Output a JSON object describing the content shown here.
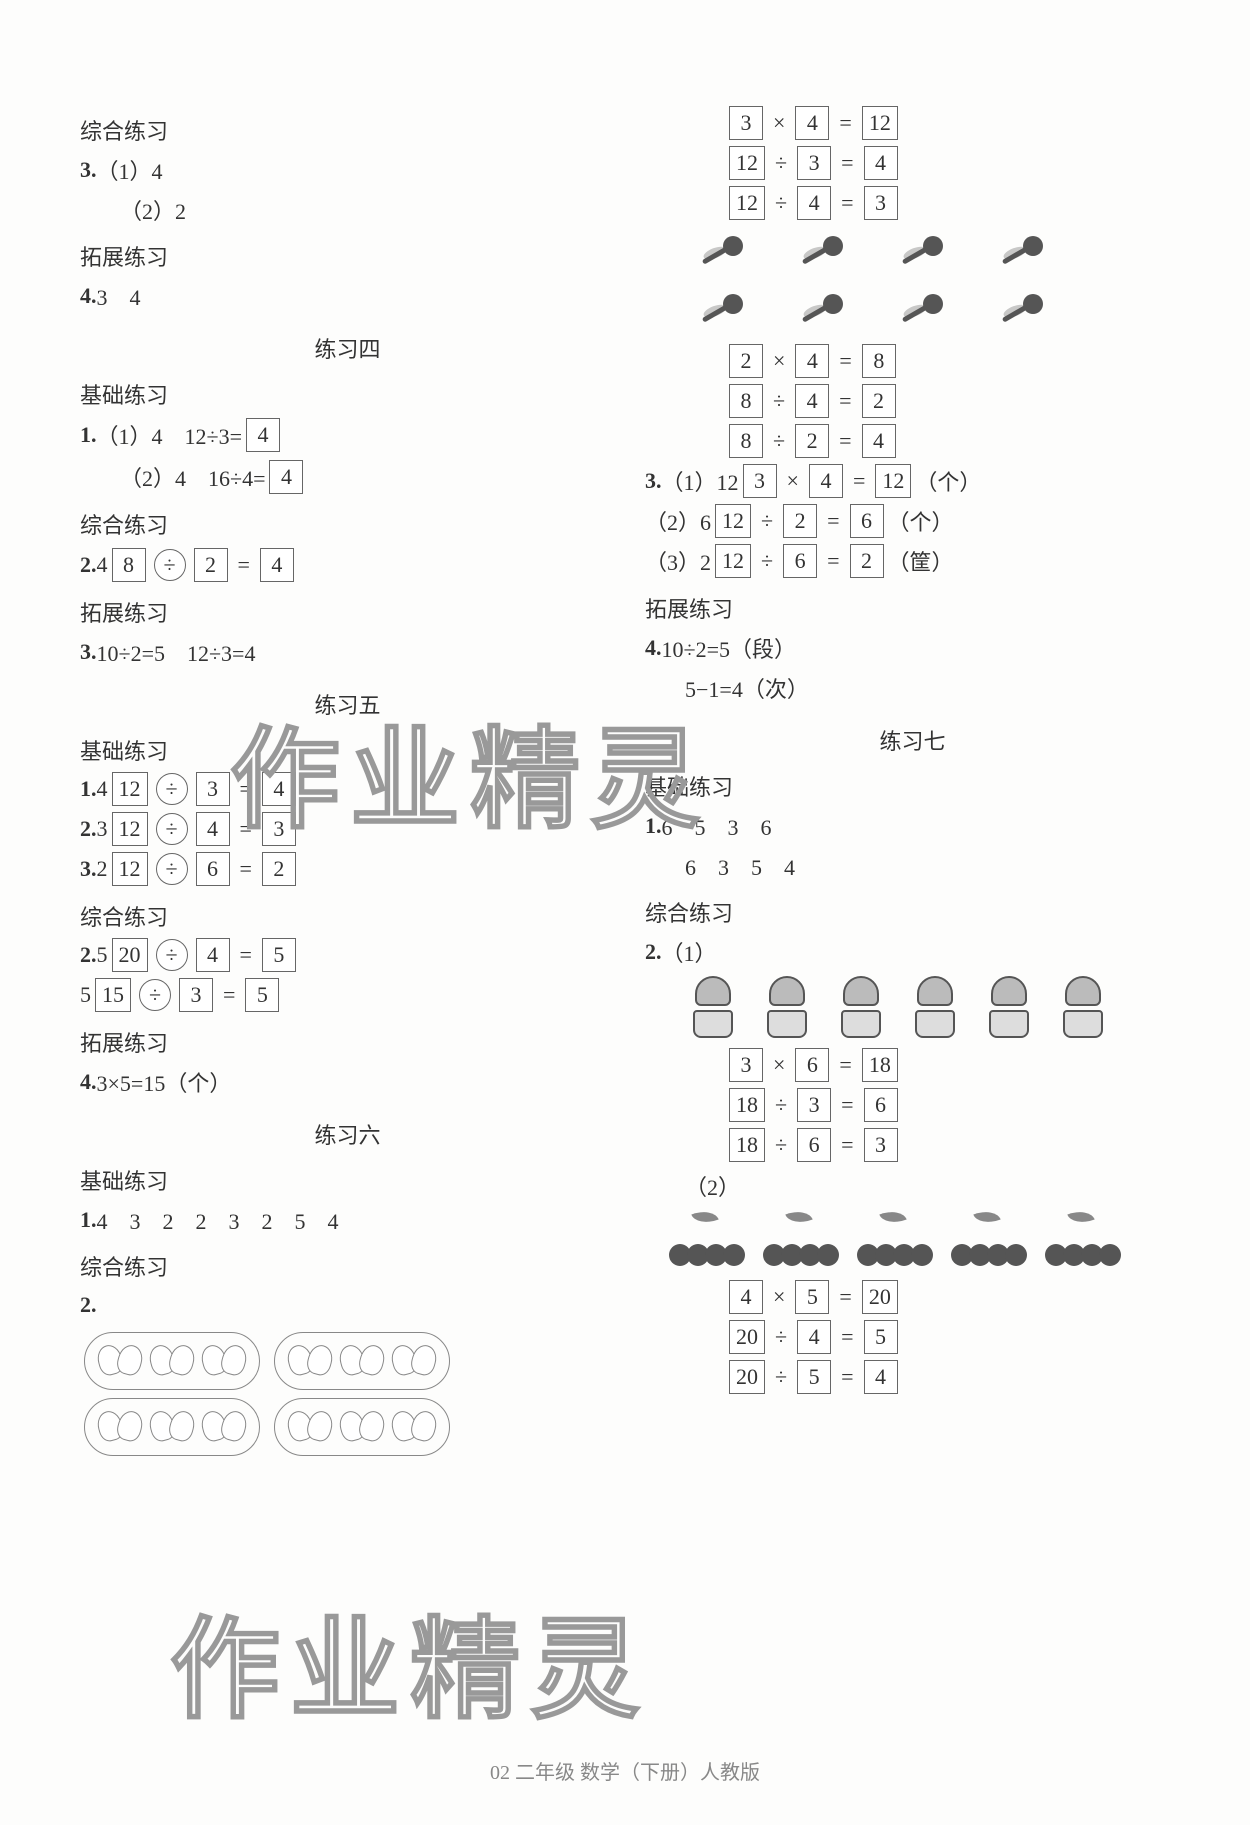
{
  "watermark": "作业精灵",
  "footer": "02  二年级  数学（下册）人教版",
  "left": {
    "sec_comp1": "综合练习",
    "q3_label": "3.",
    "q3_1": "（1）4",
    "q3_2": "（2）2",
    "sec_ext1": "拓展练习",
    "q4_label": "4.",
    "q4_text": "3　4",
    "title4": "练习四",
    "sec_base4": "基础练习",
    "p4_q1_label": "1.",
    "p4_q1_1_pre": "（1）4　12÷3=",
    "p4_q1_1_box": "4",
    "p4_q1_2_pre": "（2）4　16÷4=",
    "p4_q1_2_box": "4",
    "sec_comp4": "综合练习",
    "p4_q2_label": "2.",
    "p4_q2_lead": "4",
    "p4_q2_b1": "8",
    "p4_q2_op1": "÷",
    "p4_q2_b2": "2",
    "p4_q2_eq": "=",
    "p4_q2_b3": "4",
    "sec_ext4": "拓展练习",
    "p4_q3_label": "3.",
    "p4_q3_text": "10÷2=5　12÷3=4",
    "title5": "练习五",
    "sec_base5": "基础练习",
    "p5_rows": [
      {
        "label": "1.",
        "lead": "4",
        "b1": "12",
        "op": "÷",
        "b2": "3",
        "eq": "=",
        "b3": "4"
      },
      {
        "label": "2.",
        "lead": "3",
        "b1": "12",
        "op": "÷",
        "b2": "4",
        "eq": "=",
        "b3": "3"
      },
      {
        "label": "3.",
        "lead": "2",
        "b1": "12",
        "op": "÷",
        "b2": "6",
        "eq": "=",
        "b3": "2"
      }
    ],
    "sec_comp5": "综合练习",
    "p5_q2_label": "2.",
    "p5_q2_rows": [
      {
        "lead": "5",
        "b1": "20",
        "op": "÷",
        "b2": "4",
        "eq": "=",
        "b3": "5"
      },
      {
        "lead": "5",
        "b1": "15",
        "op": "÷",
        "b2": "3",
        "eq": "=",
        "b3": "5"
      }
    ],
    "sec_ext5": "拓展练习",
    "p5_q4_label": "4.",
    "p5_q4_text": "3×5=15（个）",
    "title6": "练习六",
    "sec_base6": "基础练习",
    "p6_q1_label": "1.",
    "p6_q1_text": "4　3　2　2　3　2　5　4",
    "sec_comp6": "综合练习",
    "p6_q2_label": "2."
  },
  "right": {
    "eq_set1": [
      {
        "b1": "3",
        "op": "×",
        "b2": "4",
        "eq": "=",
        "b3": "12"
      },
      {
        "b1": "12",
        "op": "÷",
        "b2": "3",
        "eq": "=",
        "b3": "4"
      },
      {
        "b1": "12",
        "op": "÷",
        "b2": "4",
        "eq": "=",
        "b3": "3"
      }
    ],
    "eq_set2": [
      {
        "b1": "2",
        "op": "×",
        "b2": "4",
        "eq": "=",
        "b3": "8"
      },
      {
        "b1": "8",
        "op": "÷",
        "b2": "4",
        "eq": "=",
        "b3": "2"
      },
      {
        "b1": "8",
        "op": "÷",
        "b2": "2",
        "eq": "=",
        "b3": "4"
      }
    ],
    "q3_label": "3.",
    "q3_rows": [
      {
        "pre": "（1）12",
        "b1": "3",
        "op": "×",
        "b2": "4",
        "eq": "=",
        "b3": "12",
        "unit": "（个）"
      },
      {
        "pre": "（2）6",
        "b1": "12",
        "op": "÷",
        "b2": "2",
        "eq": "=",
        "b3": "6",
        "unit": "（个）"
      },
      {
        "pre": "（3）2",
        "b1": "12",
        "op": "÷",
        "b2": "6",
        "eq": "=",
        "b3": "2",
        "unit": "（筐）"
      }
    ],
    "sec_ext6": "拓展练习",
    "p6_q4_label": "4.",
    "p6_q4_a": "10÷2=5（段）",
    "p6_q4_b": "5−1=4（次）",
    "title7": "练习七",
    "sec_base7": "基础练习",
    "p7_q1_label": "1.",
    "p7_q1_row1": "6　5　3　6",
    "p7_q1_row2": "6　3　5　4",
    "sec_comp7": "综合练习",
    "p7_q2_label": "2.",
    "p7_q2_1_pre": "（1）",
    "p7_q2_1_eqs": [
      {
        "b1": "3",
        "op": "×",
        "b2": "6",
        "eq": "=",
        "b3": "18"
      },
      {
        "b1": "18",
        "op": "÷",
        "b2": "3",
        "eq": "=",
        "b3": "6"
      },
      {
        "b1": "18",
        "op": "÷",
        "b2": "6",
        "eq": "=",
        "b3": "3"
      }
    ],
    "p7_q2_2_pre": "（2）",
    "p7_q2_2_eqs": [
      {
        "b1": "4",
        "op": "×",
        "b2": "5",
        "eq": "=",
        "b3": "20"
      },
      {
        "b1": "20",
        "op": "÷",
        "b2": "4",
        "eq": "=",
        "b3": "5"
      },
      {
        "b1": "20",
        "op": "÷",
        "b2": "5",
        "eq": "=",
        "b3": "4"
      }
    ]
  },
  "colors": {
    "text": "#333",
    "box_border": "#666",
    "bg": "#fdfdfc",
    "watermark_stroke": "#999"
  }
}
